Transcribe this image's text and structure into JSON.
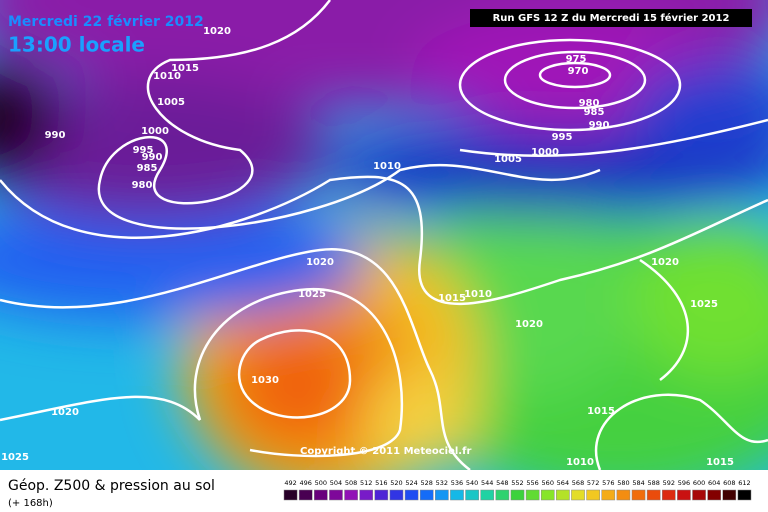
{
  "header": {
    "date": "Mercredi 22 février 2012",
    "time": "13:00 locale",
    "run": "Run GFS 12 Z du Mercredi 15 février 2012"
  },
  "isobar_labels": [
    "1020",
    "1015",
    "1010",
    "1005",
    "1000",
    "990",
    "995",
    "990",
    "985",
    "980",
    "975",
    "970",
    "980",
    "985",
    "990",
    "995",
    "1000",
    "1005",
    "1010",
    "1020",
    "1025",
    "1015",
    "1010",
    "1020",
    "1020",
    "1025",
    "1030",
    "1020",
    "1015",
    "1025",
    "1010",
    "1015"
  ],
  "copyright": "Copyright © 2011 Meteociel.fr",
  "caption": {
    "title": "Géop. Z500 & pression au sol",
    "subtitle": "(+ 168h)"
  },
  "legend": [
    "492",
    "496",
    "500",
    "504",
    "508",
    "512",
    "516",
    "520",
    "524",
    "528",
    "532",
    "536",
    "540",
    "544",
    "548",
    "552",
    "556",
    "560",
    "564",
    "568",
    "572",
    "576",
    "580",
    "584",
    "588",
    "592",
    "596",
    "600",
    "604",
    "608",
    "612"
  ]
}
